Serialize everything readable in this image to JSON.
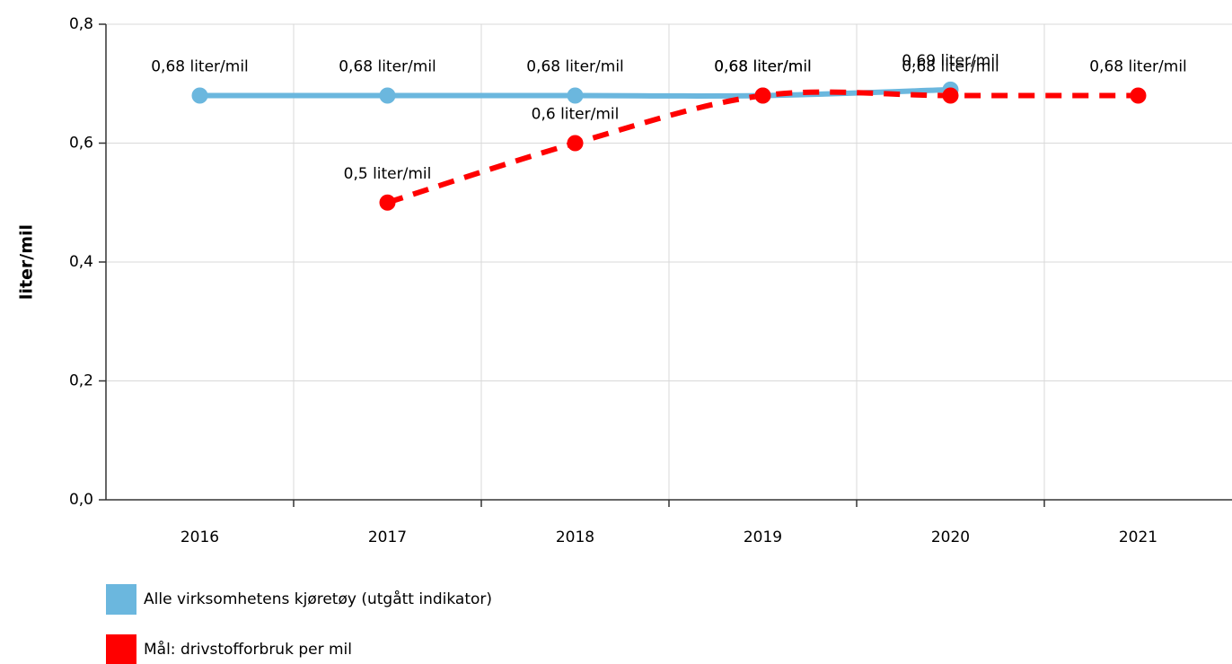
{
  "chart_data": {
    "type": "line",
    "y_label": "liter/mil",
    "categories": [
      "2016",
      "2017",
      "2018",
      "2019",
      "2020",
      "2021"
    ],
    "series": [
      {
        "name": "Alle virksomhetens kjøretøy (utgått indikator)",
        "color": "#6bb7de",
        "dashed": false,
        "values": [
          0.68,
          0.68,
          0.68,
          0.68,
          0.69,
          null
        ],
        "value_labels": [
          "0,68 liter/mil",
          "0,68 liter/mil",
          "0,68 liter/mil",
          "0,68 liter/mil",
          "0,69 liter/mil",
          null
        ]
      },
      {
        "name": "Mål: drivstofforbruk per mil",
        "color": "#ff0000",
        "dashed": true,
        "values": [
          null,
          0.5,
          0.6,
          0.68,
          0.68,
          0.68
        ],
        "value_labels": [
          null,
          "0,5 liter/mil",
          "0,6 liter/mil",
          "0,68 liter/mil",
          "0,68 liter/mil",
          "0,68 liter/mil"
        ]
      }
    ],
    "ylim": [
      0,
      0.8
    ],
    "yticks": [
      {
        "value": 0,
        "label": "0,0"
      },
      {
        "value": 0.2,
        "label": "0,2"
      },
      {
        "value": 0.4,
        "label": "0,4"
      },
      {
        "value": 0.6,
        "label": "0,6"
      },
      {
        "value": 0.8,
        "label": "0,8"
      }
    ],
    "grid": true
  }
}
